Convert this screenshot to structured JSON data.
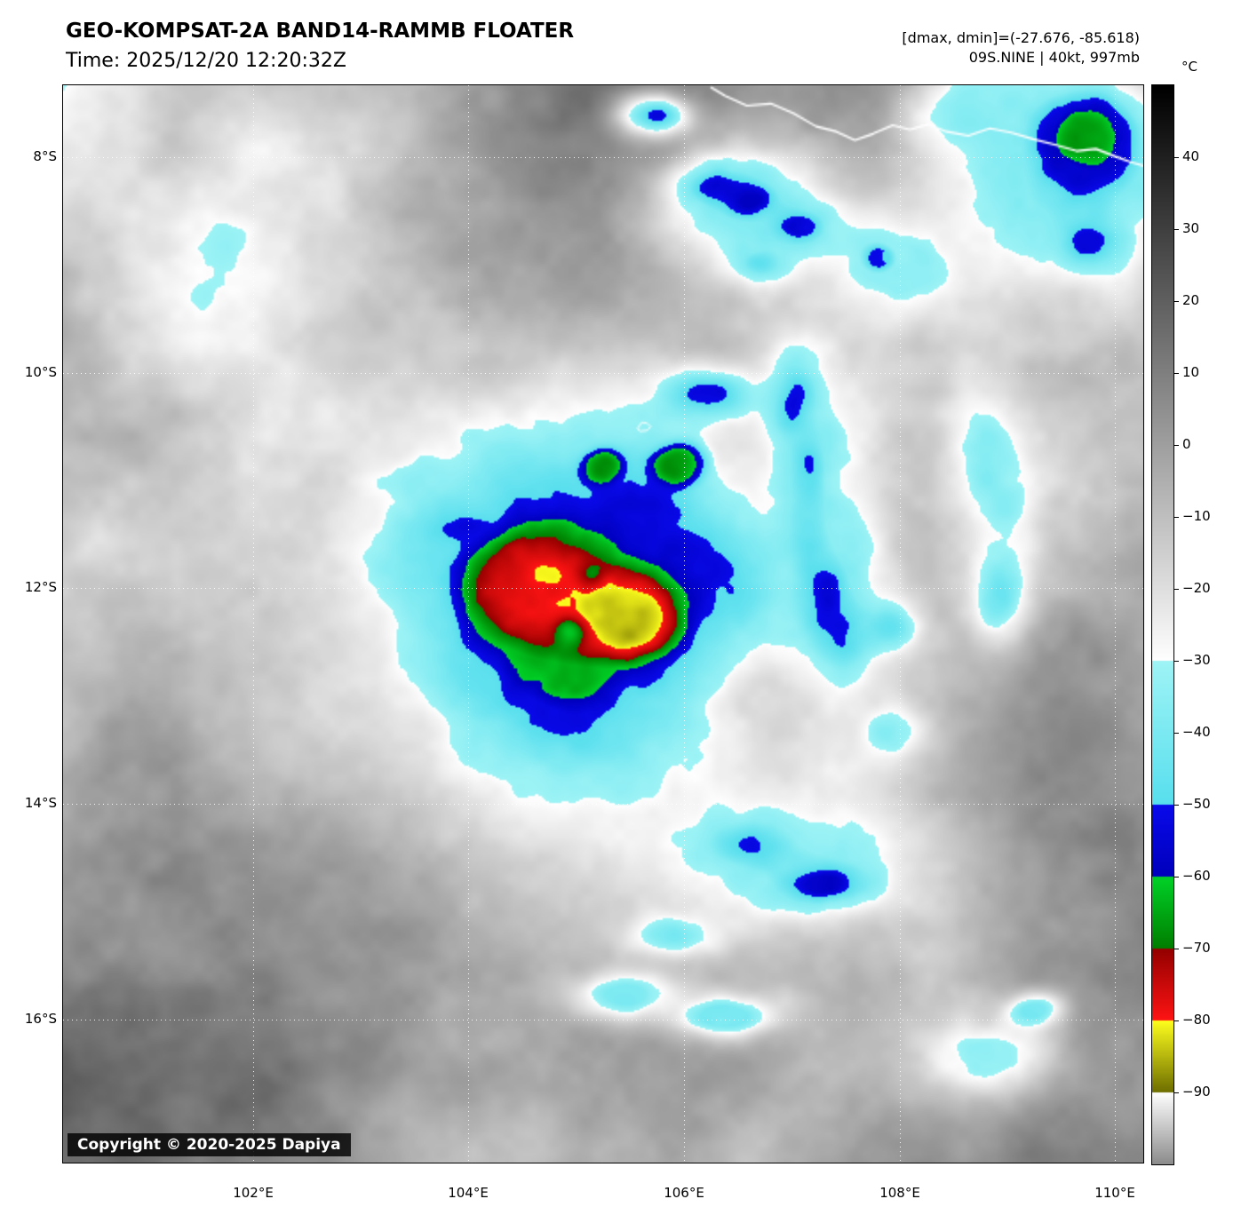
{
  "header": {
    "title": "GEO-KOMPSAT-2A BAND14-RAMMB FLOATER",
    "time_line": "Time: 2025/12/20 12:20:32Z",
    "range_line": "[dmax, dmin]=(-27.676, -85.618)",
    "storm_line": "09S.NINE | 40kt, 997mb"
  },
  "colorbar": {
    "unit_label": "°C",
    "tick_labels": [
      "40",
      "30",
      "20",
      "10",
      "0",
      "−10",
      "−20",
      "−30",
      "−40",
      "−50",
      "−60",
      "−70",
      "−80",
      "−90"
    ],
    "top_value": 50,
    "bottom_value": -100,
    "segments": [
      {
        "label": "grayscale-warm",
        "from": 50,
        "to": -30,
        "color_from": "#000000",
        "color_to": "#ffffff"
      },
      {
        "label": "cyan",
        "from": -30,
        "to": -50,
        "color_from": "#9ff4f6",
        "color_to": "#58dfee"
      },
      {
        "label": "blue",
        "from": -50,
        "to": -60,
        "color_from": "#0a0aeb",
        "color_to": "#0000bc"
      },
      {
        "label": "green",
        "from": -60,
        "to": -70,
        "color_from": "#00d228",
        "color_to": "#007e00"
      },
      {
        "label": "red",
        "from": -70,
        "to": -80,
        "color_from": "#940000",
        "color_to": "#ff1414"
      },
      {
        "label": "yellow",
        "from": -80,
        "to": -90,
        "color_from": "#ffff1e",
        "color_to": "#6e6e00"
      },
      {
        "label": "grayscale-cold",
        "from": -90,
        "to": -100,
        "color_from": "#ffffff",
        "color_to": "#8c8c8c"
      }
    ]
  },
  "map": {
    "lat_labels": [
      "8°S",
      "10°S",
      "12°S",
      "14°S",
      "16°S"
    ],
    "lon_labels": [
      "102°E",
      "104°E",
      "106°E",
      "108°E",
      "110°E"
    ],
    "copyright": "Copyright © 2020-2025 Dapiya"
  }
}
